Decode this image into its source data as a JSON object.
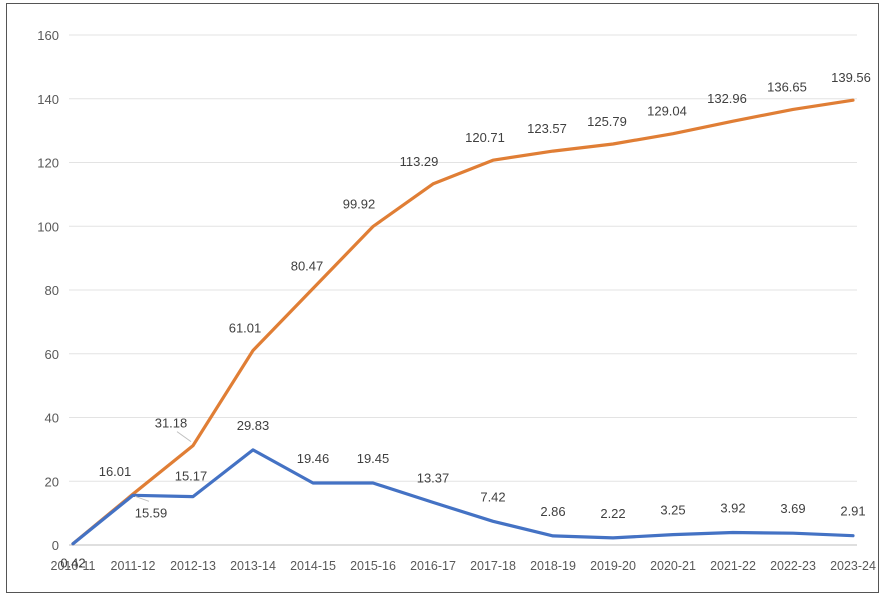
{
  "chart_data": {
    "type": "line",
    "title": "",
    "xlabel": "",
    "ylabel": "",
    "categories": [
      "2010-11",
      "2011-12",
      "2012-13",
      "2013-14",
      "2014-15",
      "2015-16",
      "2016-17",
      "2017-18",
      "2018-19",
      "2019-20",
      "2020-21",
      "2021-22",
      "2022-23",
      "2023-24"
    ],
    "ylim": [
      0,
      160
    ],
    "yticks": [
      "0",
      "20",
      "40",
      "60",
      "80",
      "100",
      "120",
      "140",
      "160"
    ],
    "grid": true,
    "legend": "none",
    "series": [
      {
        "color": "#E07E35",
        "values": [
          0.42,
          16.01,
          31.18,
          61.01,
          80.47,
          99.92,
          113.29,
          120.71,
          123.57,
          125.79,
          129.04,
          132.96,
          136.65,
          139.56
        ],
        "labels": [
          "0.42",
          "16.01",
          "31.18",
          "61.01",
          "80.47",
          "99.92",
          "113.29",
          "120.71",
          "123.57",
          "125.79",
          "129.04",
          "132.96",
          "136.65",
          "139.56"
        ]
      },
      {
        "color": "#4472C4",
        "values": [
          0.42,
          15.59,
          15.17,
          29.83,
          19.46,
          19.45,
          13.37,
          7.42,
          2.86,
          2.22,
          3.25,
          3.92,
          3.69,
          2.91
        ],
        "labels": [
          "",
          "15.59",
          "15.17",
          "29.83",
          "19.46",
          "19.45",
          "13.37",
          "7.42",
          "2.86",
          "2.22",
          "3.25",
          "3.92",
          "3.69",
          "2.91"
        ]
      }
    ]
  }
}
